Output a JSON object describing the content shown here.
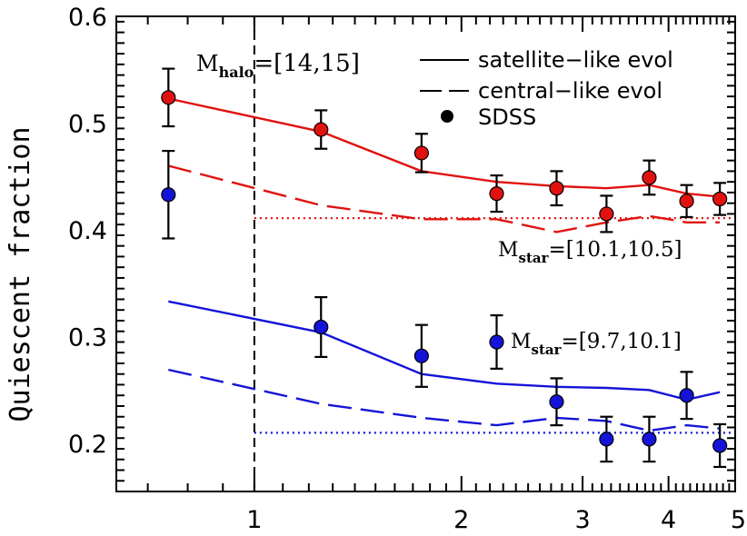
{
  "chart_data": {
    "type": "scatter",
    "xlabel": "",
    "ylabel": "Quiescent fraction",
    "xlim": [
      0.63,
      5.0
    ],
    "ylim": [
      0.155,
      0.6
    ],
    "x_scale": "log",
    "xticks": [
      "1",
      "2",
      "3",
      "4",
      "5"
    ],
    "yticks": [
      "0.2",
      "0.3",
      "0.4",
      "0.5",
      "0.6"
    ],
    "grid": false,
    "legend_position": "top-right",
    "legend": {
      "solid": "satellite−like evol",
      "dashed": "central−like evol",
      "points": "SDSS"
    },
    "annotations": {
      "halo_prefix": "M",
      "halo_sub": "halo",
      "halo_range": "=[14,15]",
      "high_prefix": "M",
      "high_sub": "star",
      "high_range": "=[10.1,10.5]",
      "low_prefix": "M",
      "low_sub": "star",
      "low_range": "=[9.7,10.1]"
    },
    "vertical_line_x": 1.0,
    "groups": [
      {
        "color": "#e0120f",
        "sdss": [
          {
            "x": 0.75,
            "y": 0.524,
            "err": 0.027
          },
          {
            "x": 1.25,
            "y": 0.494,
            "err": 0.018
          },
          {
            "x": 1.75,
            "y": 0.472,
            "err": 0.018
          },
          {
            "x": 2.25,
            "y": 0.434,
            "err": 0.017
          },
          {
            "x": 2.75,
            "y": 0.439,
            "err": 0.016
          },
          {
            "x": 3.25,
            "y": 0.415,
            "err": 0.017
          },
          {
            "x": 3.75,
            "y": 0.449,
            "err": 0.016
          },
          {
            "x": 4.25,
            "y": 0.427,
            "err": 0.015
          },
          {
            "x": 4.75,
            "y": 0.429,
            "err": 0.015
          }
        ],
        "satellite_like": {
          "x": [
            0.75,
            1.25,
            1.75,
            2.25,
            2.75,
            3.25,
            3.75,
            4.25,
            4.75
          ],
          "y": [
            0.523,
            0.492,
            0.455,
            0.445,
            0.441,
            0.439,
            0.442,
            0.434,
            0.431
          ]
        },
        "central_like": {
          "x": [
            0.75,
            1.25,
            1.75,
            2.25,
            2.75,
            3.25,
            3.75,
            4.25,
            4.75
          ],
          "y": [
            0.46,
            0.423,
            0.41,
            0.41,
            0.398,
            0.407,
            0.413,
            0.407,
            0.407
          ]
        },
        "reference_y": 0.411
      },
      {
        "color": "#1414d8",
        "sdss": [
          {
            "x": 0.75,
            "y": 0.433,
            "err": 0.041
          },
          {
            "x": 1.25,
            "y": 0.309,
            "err": 0.028
          },
          {
            "x": 1.75,
            "y": 0.282,
            "err": 0.029
          },
          {
            "x": 2.25,
            "y": 0.295,
            "err": 0.025
          },
          {
            "x": 2.75,
            "y": 0.239,
            "err": 0.022
          },
          {
            "x": 3.25,
            "y": 0.204,
            "err": 0.021
          },
          {
            "x": 3.75,
            "y": 0.204,
            "err": 0.021
          },
          {
            "x": 4.25,
            "y": 0.245,
            "err": 0.022
          },
          {
            "x": 4.75,
            "y": 0.198,
            "err": 0.02
          }
        ],
        "satellite_like": {
          "x": [
            0.75,
            1.25,
            1.75,
            2.25,
            2.75,
            3.25,
            3.75,
            4.25,
            4.75
          ],
          "y": [
            0.333,
            0.304,
            0.265,
            0.256,
            0.253,
            0.252,
            0.25,
            0.241,
            0.248
          ]
        },
        "central_like": {
          "x": [
            0.75,
            1.25,
            1.75,
            2.25,
            2.75,
            3.25,
            3.75,
            4.25,
            4.75
          ],
          "y": [
            0.269,
            0.237,
            0.224,
            0.217,
            0.224,
            0.221,
            0.212,
            0.217,
            0.214
          ]
        },
        "reference_y": 0.21
      }
    ]
  }
}
